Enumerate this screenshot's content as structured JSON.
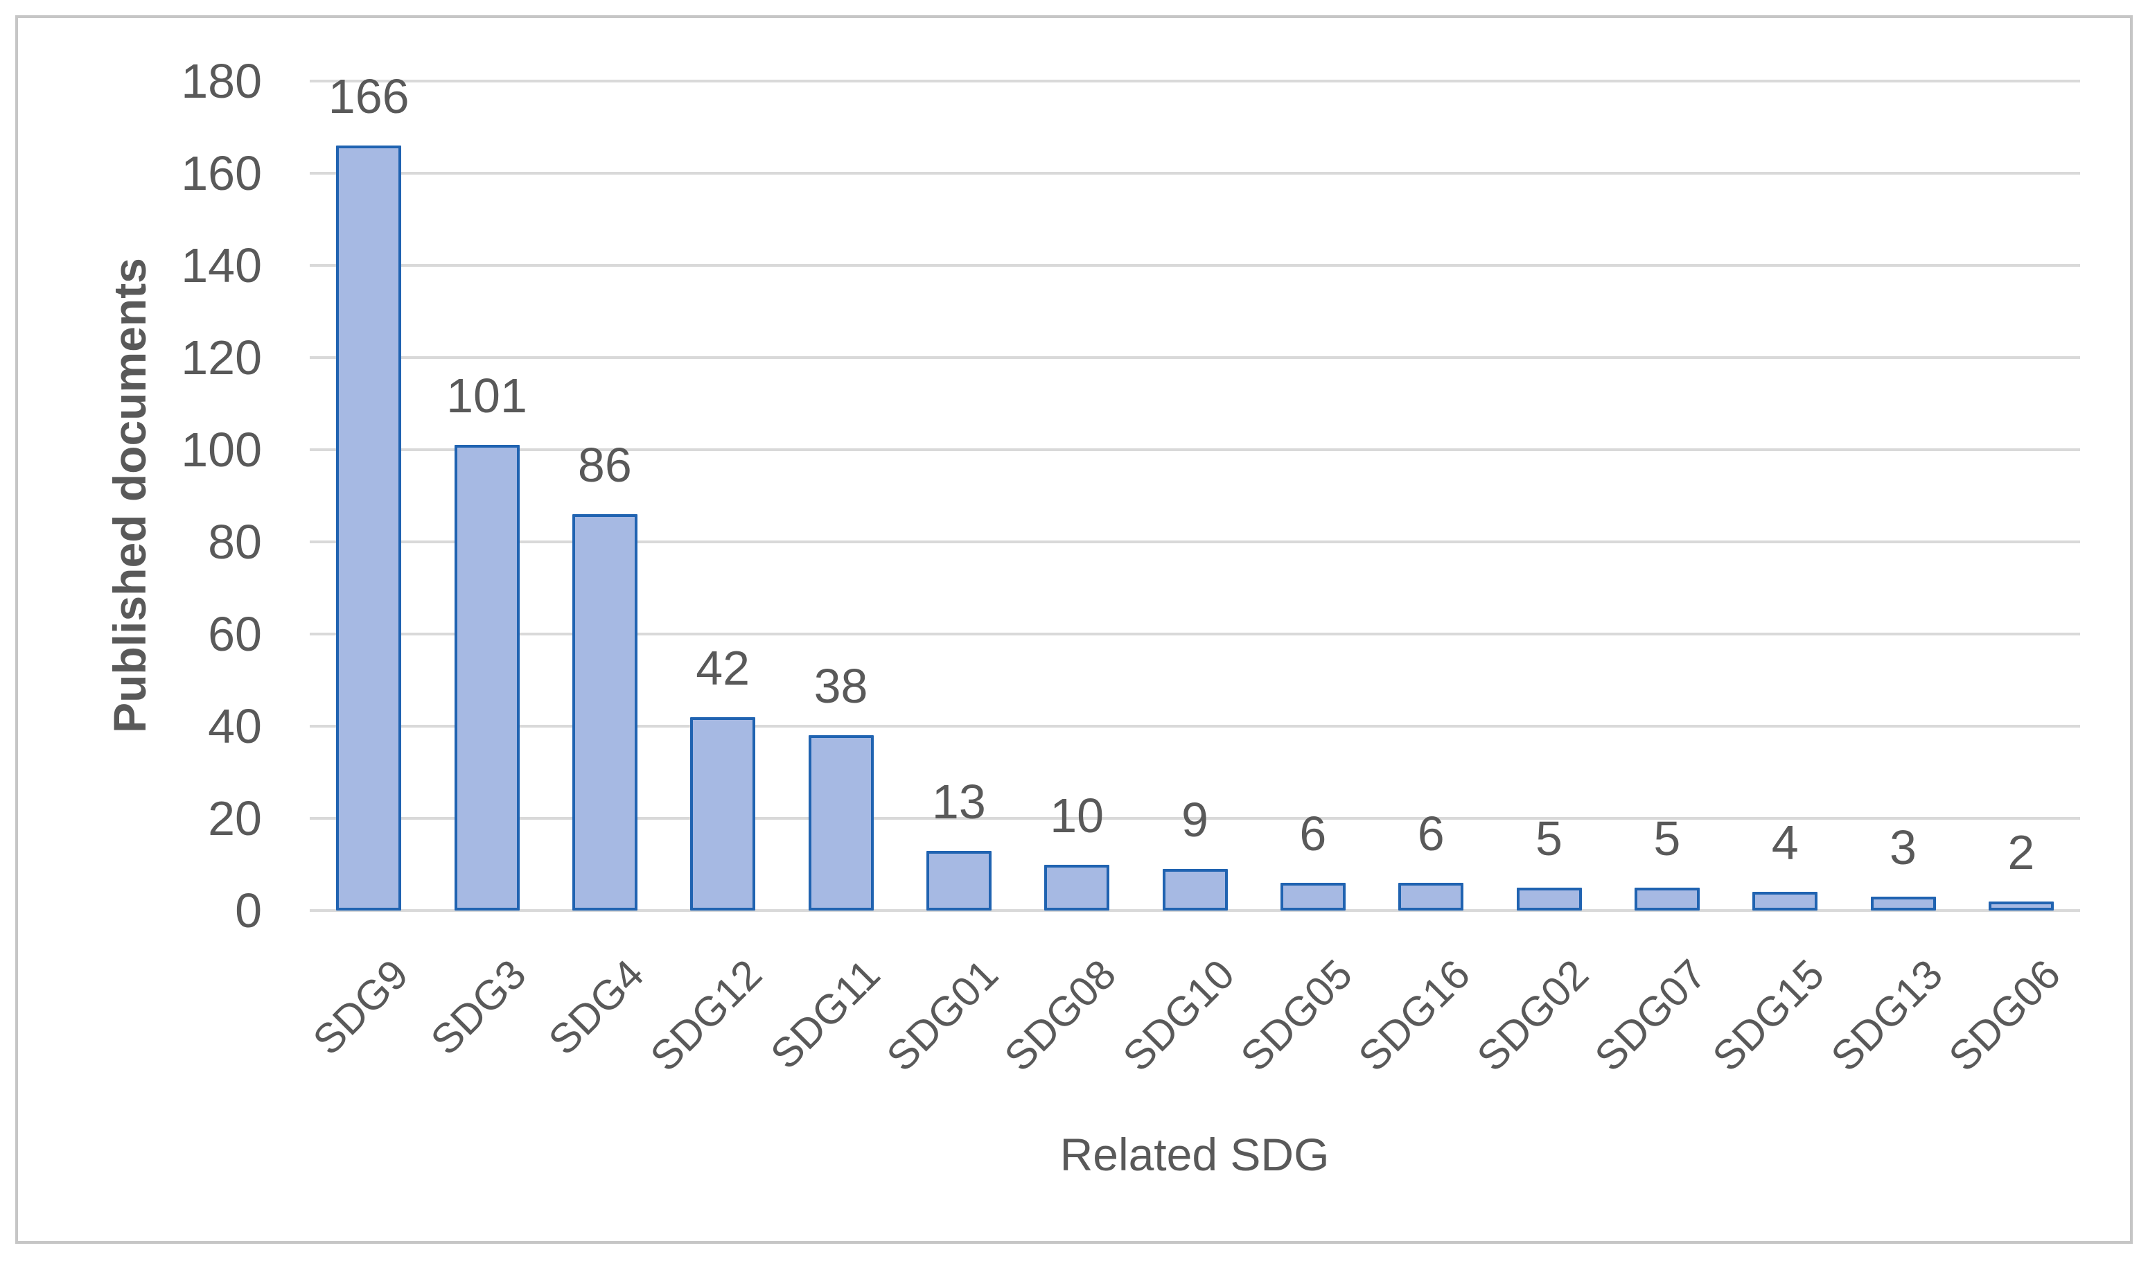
{
  "chart_data": {
    "type": "bar",
    "title": "",
    "xlabel": "Related SDG",
    "ylabel": "Published documents",
    "categories": [
      "SDG9",
      "SDG3",
      "SDG4",
      "SDG12",
      "SDG11",
      "SDG01",
      "SDG08",
      "SDG10",
      "SDG05",
      "SDG16",
      "SDG02",
      "SDG07",
      "SDG15",
      "SDG13",
      "SDG06"
    ],
    "values": [
      166,
      101,
      86,
      42,
      38,
      13,
      10,
      9,
      6,
      6,
      5,
      5,
      4,
      3,
      2
    ],
    "data_labels": [
      "166",
      "101",
      "86",
      "42",
      "38",
      "13",
      "10",
      "9",
      "6",
      "6",
      "5",
      "5",
      "4",
      "3",
      "2"
    ],
    "yticks": [
      0,
      20,
      40,
      60,
      80,
      100,
      120,
      140,
      160,
      180
    ],
    "ylim": [
      0,
      180
    ],
    "grid": "horizontal",
    "legend": "none",
    "x_labels_rotation_deg": 45,
    "colors": {
      "bar_fill": "#a6b9e3",
      "bar_border": "#2063b1",
      "gridline": "#d9d9d9",
      "text": "#595959",
      "frame_border": "#c6c6c6",
      "background": "#ffffff"
    }
  }
}
